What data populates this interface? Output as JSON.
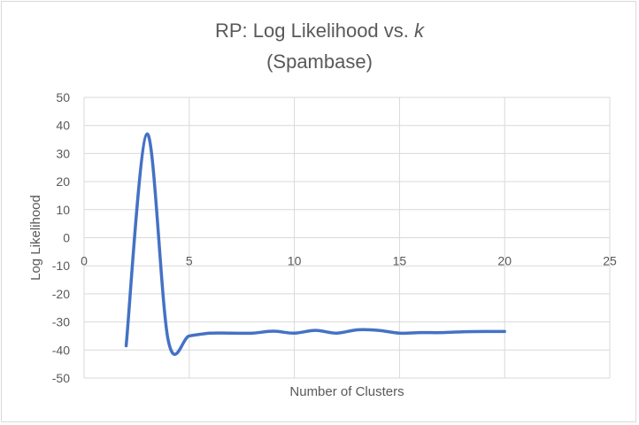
{
  "chart_data": {
    "type": "scatter",
    "title_prefix": "RP: Log Likelihood vs. ",
    "title_var": "k",
    "subtitle": "(Spambase)",
    "xlabel": "Number of Clusters",
    "ylabel": "Log Likelihood",
    "xlim": [
      0,
      25
    ],
    "ylim": [
      -50,
      50
    ],
    "xticks": [
      0,
      5,
      10,
      15,
      20,
      25
    ],
    "yticks": [
      -50,
      -40,
      -30,
      -20,
      -10,
      0,
      10,
      20,
      30,
      40,
      50
    ],
    "grid": true,
    "smoothed_line": true,
    "series": [
      {
        "x": [
          2,
          3,
          4,
          5,
          6,
          7,
          8,
          9,
          10,
          11,
          12,
          13,
          14,
          15,
          16,
          17,
          18,
          19,
          20
        ],
        "y": [
          -38.5,
          37,
          -36.5,
          -35,
          -34,
          -34,
          -34,
          -33.3,
          -34,
          -33,
          -34,
          -32.8,
          -33,
          -34,
          -33.8,
          -33.8,
          -33.5,
          -33.4,
          -33.4
        ]
      }
    ],
    "line_color": "#4472c4"
  }
}
